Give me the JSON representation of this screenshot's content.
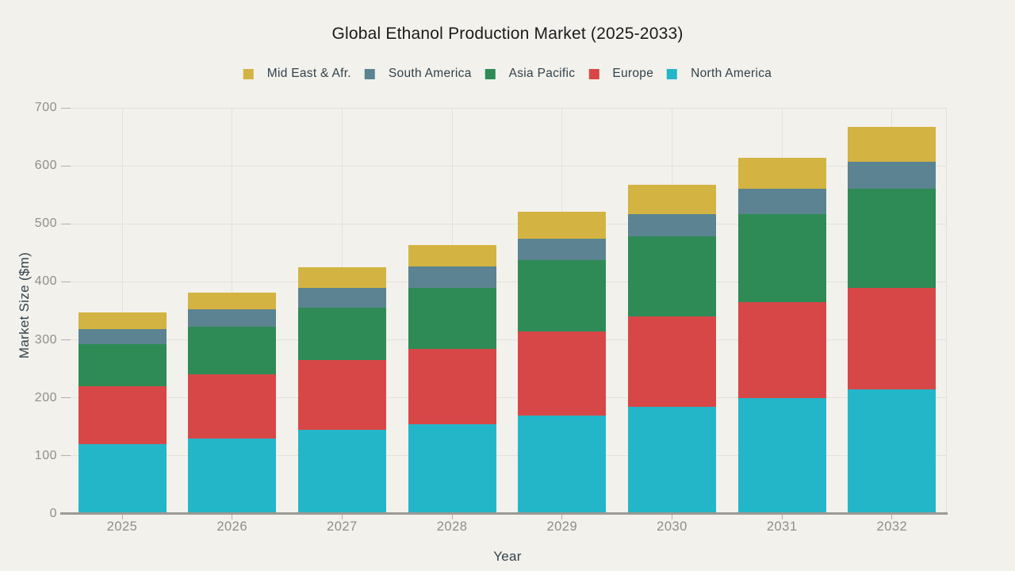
{
  "title": "Global Ethanol Production Market (2025-2033)",
  "colors": {
    "background": "#f2f1ec",
    "grid": "#e3e1da",
    "axis_line": "#9b9a95",
    "tick_mark": "#b4afa6",
    "tick_label": "#8f8e8a",
    "title_text": "#1b1b1b",
    "axis_title_text": "#33424b",
    "legend_text": "#32424b"
  },
  "chart_data": {
    "type": "bar",
    "stacked": true,
    "title": "Global Ethanol Production Market (2025-2033)",
    "xlabel": "Year",
    "ylabel": "Market Size ($m)",
    "ylim": [
      0,
      700
    ],
    "yticks": [
      0,
      100,
      200,
      300,
      400,
      500,
      600,
      700
    ],
    "grid": true,
    "legend_position": "top",
    "categories": [
      "2025",
      "2026",
      "2027",
      "2028",
      "2029",
      "2030",
      "2031",
      "2032"
    ],
    "series": [
      {
        "name": "North America",
        "color": "#23b6c9",
        "values": [
          120,
          130,
          145,
          155,
          170,
          185,
          200,
          215
        ]
      },
      {
        "name": "Europe",
        "color": "#d84747",
        "values": [
          100,
          110,
          120,
          130,
          145,
          155,
          165,
          175
        ]
      },
      {
        "name": "Asia Pacific",
        "color": "#2e8b55",
        "values": [
          72,
          82,
          90,
          105,
          122,
          138,
          152,
          170
        ]
      },
      {
        "name": "South America",
        "color": "#5b8391",
        "values": [
          27,
          31,
          35,
          36,
          38,
          39,
          44,
          47
        ]
      },
      {
        "name": "Mid East & Afr.",
        "color": "#d3b341",
        "values": [
          28,
          29,
          35,
          38,
          46,
          51,
          53,
          60
        ]
      }
    ],
    "legend_order": [
      "Mid East & Afr.",
      "South America",
      "Asia Pacific",
      "Europe",
      "North America"
    ],
    "totals": [
      347,
      382,
      425,
      464,
      521,
      568,
      614,
      667
    ]
  }
}
